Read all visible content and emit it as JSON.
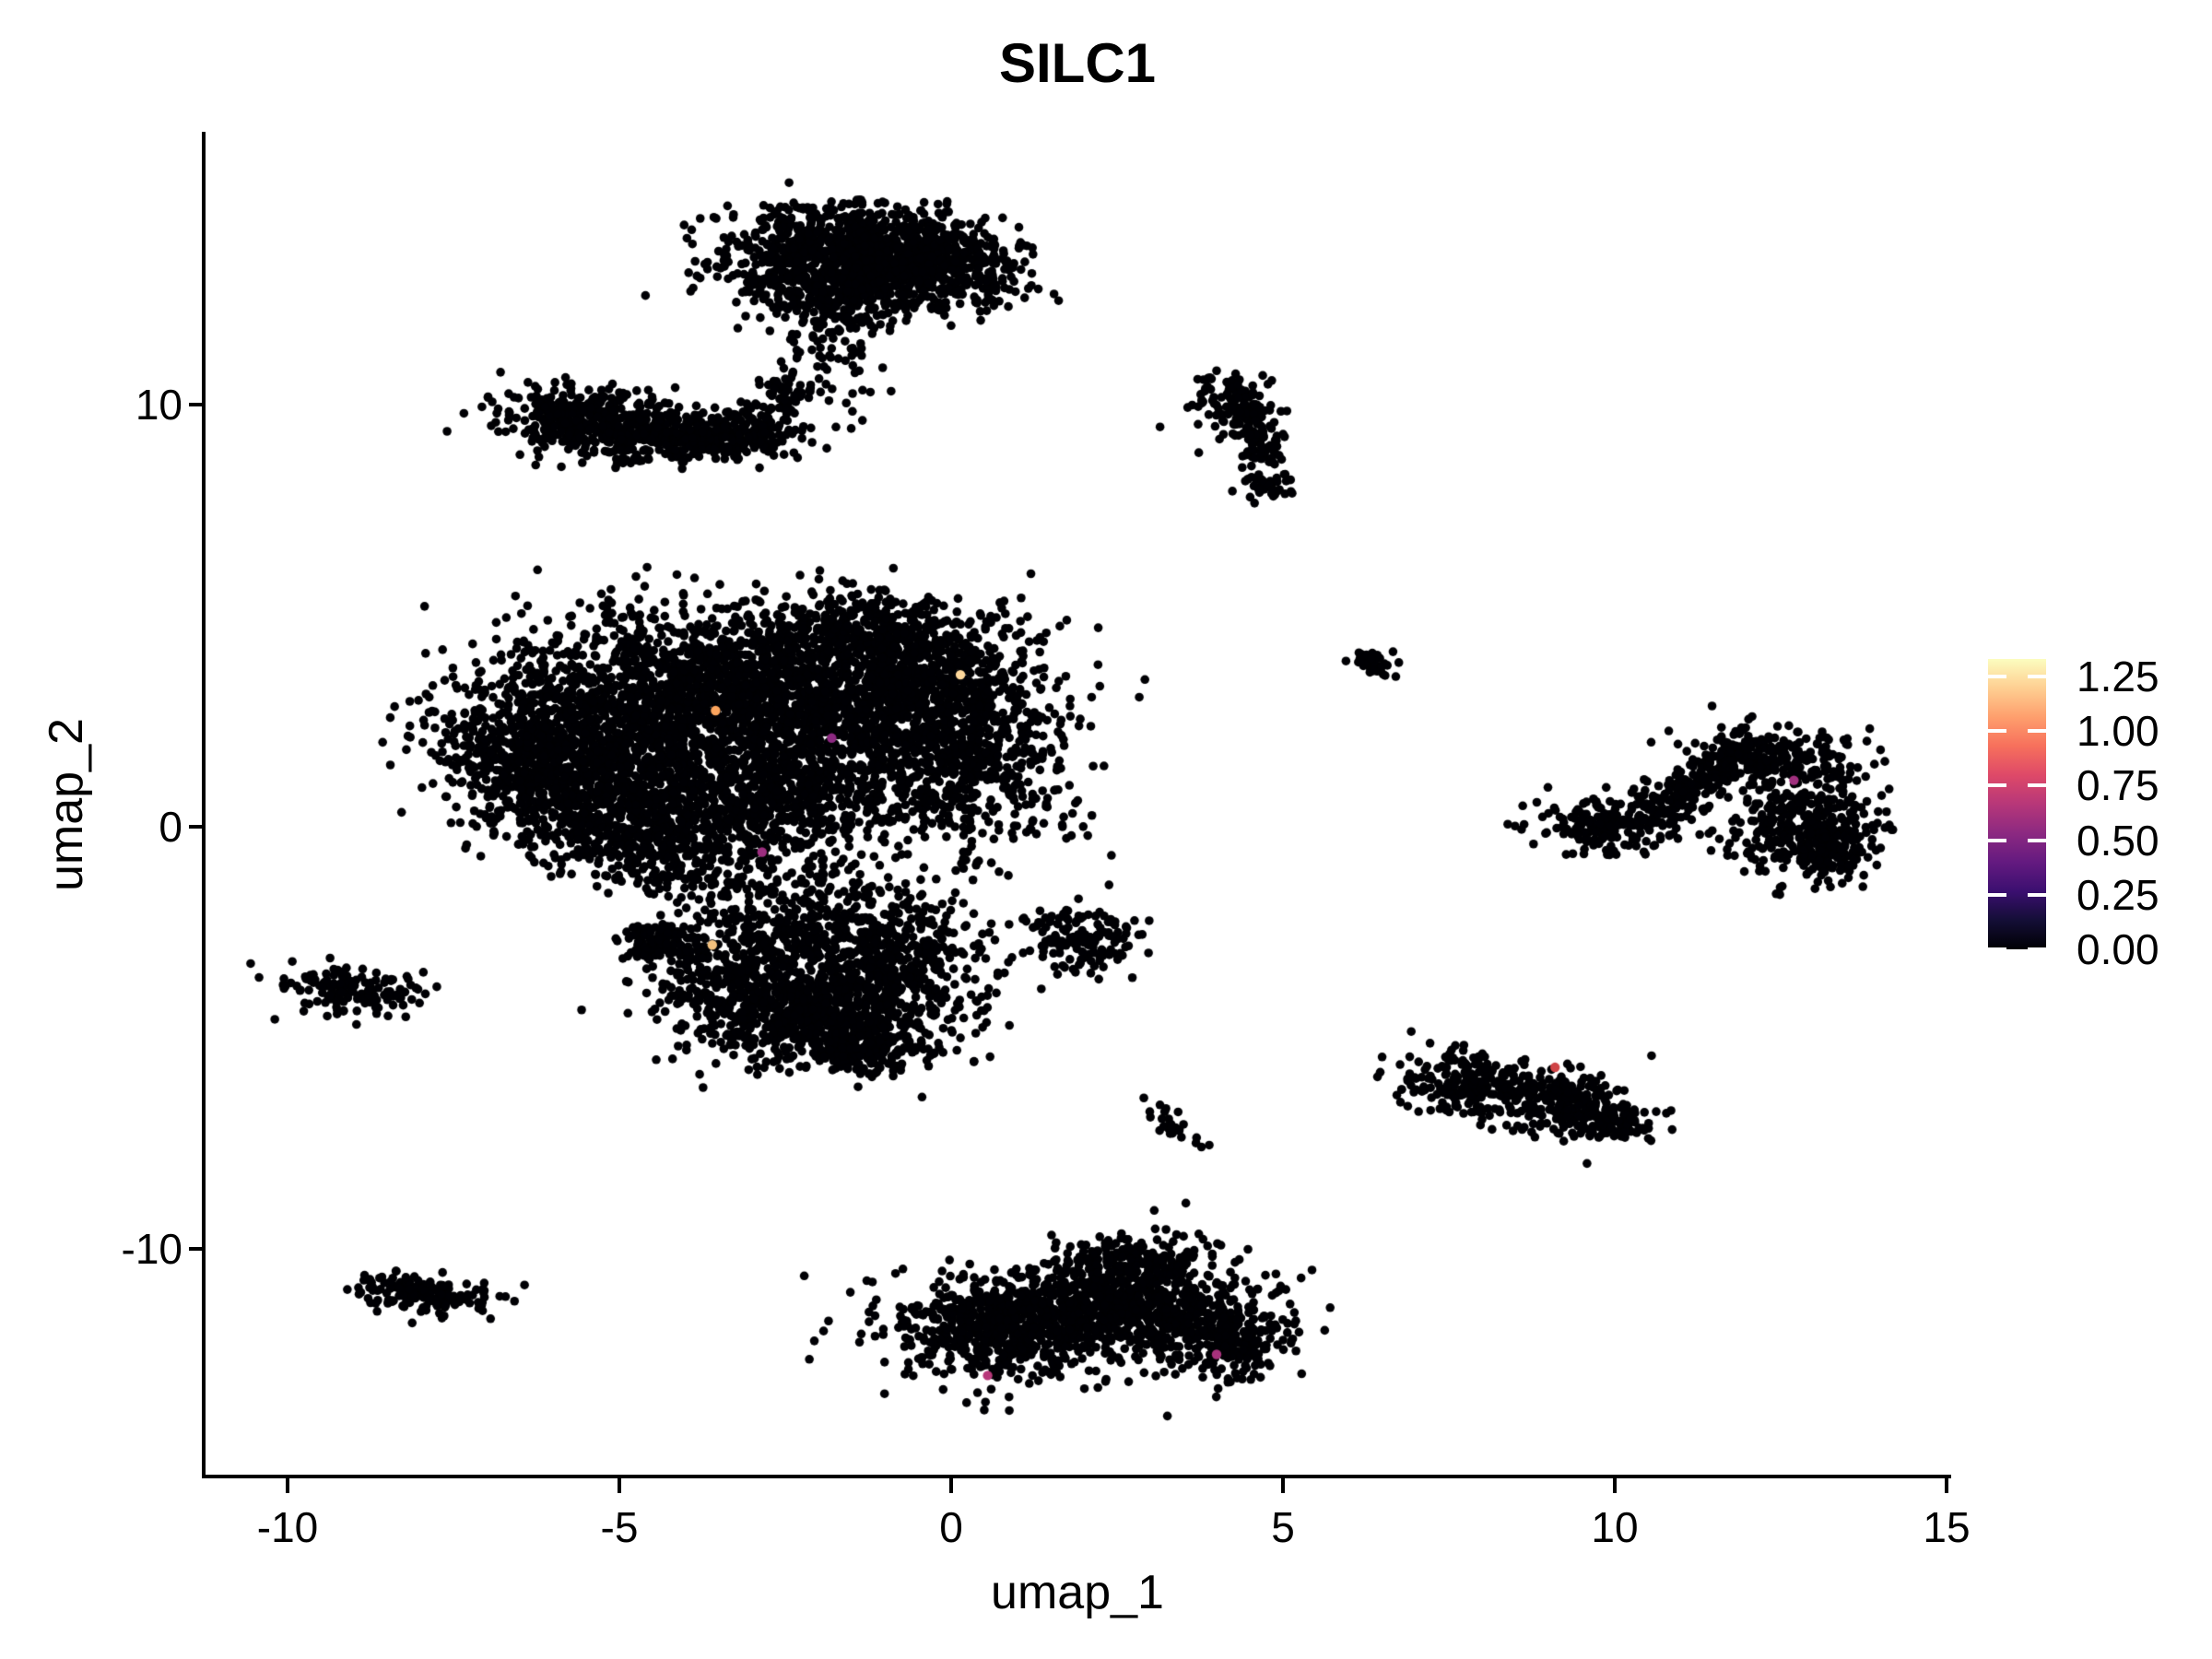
{
  "title": "SILC1",
  "axes": {
    "x": {
      "label": "umap_1",
      "ticks": [
        {
          "label": "-10",
          "value": -10
        },
        {
          "label": "-5",
          "value": -5
        },
        {
          "label": "0",
          "value": 0
        },
        {
          "label": "5",
          "value": 5
        },
        {
          "label": "10",
          "value": 10
        },
        {
          "label": "15",
          "value": 15
        }
      ]
    },
    "y": {
      "label": "umap_2",
      "ticks": [
        {
          "label": "10",
          "value": 10
        },
        {
          "label": "0",
          "value": 0
        },
        {
          "label": "-10",
          "value": -10
        }
      ]
    }
  },
  "legend": {
    "min": 0,
    "max": 1.33,
    "colormap": "magma",
    "ticks": [
      {
        "label": "1.25",
        "value": 1.25
      },
      {
        "label": "1.00",
        "value": 1.0
      },
      {
        "label": "0.75",
        "value": 0.75
      },
      {
        "label": "0.50",
        "value": 0.5
      },
      {
        "label": "0.25",
        "value": 0.25
      },
      {
        "label": "0.00",
        "value": 0.0
      }
    ],
    "stops": [
      {
        "t": 0.0,
        "c": "#000004"
      },
      {
        "t": 0.1,
        "c": "#140e36"
      },
      {
        "t": 0.2,
        "c": "#3b0f70"
      },
      {
        "t": 0.3,
        "c": "#641a80"
      },
      {
        "t": 0.4,
        "c": "#8c2981"
      },
      {
        "t": 0.5,
        "c": "#b73779"
      },
      {
        "t": 0.6,
        "c": "#de4968"
      },
      {
        "t": 0.7,
        "c": "#f7705c"
      },
      {
        "t": 0.8,
        "c": "#fe9f6d"
      },
      {
        "t": 0.9,
        "c": "#fecf92"
      },
      {
        "t": 1.0,
        "c": "#fcfdbf"
      }
    ]
  },
  "chart_data": {
    "type": "scatter",
    "title": "SILC1",
    "xlabel": "umap_1",
    "ylabel": "umap_2",
    "xlim": [
      -11.2,
      15.0
    ],
    "ylim": [
      -15.4,
      16.4
    ],
    "grid": false,
    "legend_position": "right",
    "point_color": "#000004",
    "point_radius_px": 4.8,
    "blob_format": [
      "center_x",
      "center_y",
      "sigma_x",
      "sigma_y",
      "n_points",
      "rotation_deg"
    ],
    "clusters": [
      {
        "name": "top-cluster",
        "blobs": [
          [
            -2.0,
            13.6,
            0.8,
            0.55,
            550,
            0
          ],
          [
            -0.9,
            13.7,
            0.75,
            0.5,
            450,
            0
          ],
          [
            0.1,
            13.15,
            0.55,
            0.45,
            250,
            0
          ],
          [
            -1.6,
            12.6,
            0.7,
            0.4,
            250,
            0
          ],
          [
            -1.9,
            11.3,
            0.35,
            0.8,
            85,
            0
          ]
        ]
      },
      {
        "name": "upper-left-arm",
        "blobs": [
          [
            -5.7,
            9.7,
            0.55,
            0.42,
            280,
            0
          ],
          [
            -4.8,
            9.35,
            0.5,
            0.35,
            220,
            0
          ],
          [
            -3.9,
            9.2,
            0.5,
            0.3,
            180,
            0
          ],
          [
            -3.0,
            9.4,
            0.4,
            0.3,
            120,
            0
          ],
          [
            -2.5,
            10.3,
            0.25,
            0.35,
            50,
            0
          ]
        ]
      },
      {
        "name": "crescent-upper-right",
        "blobs": [
          [
            4.25,
            10.2,
            0.3,
            0.28,
            70,
            0
          ],
          [
            4.55,
            9.6,
            0.18,
            0.3,
            50,
            0
          ],
          [
            4.7,
            8.9,
            0.15,
            0.3,
            45,
            0
          ],
          [
            4.75,
            8.15,
            0.18,
            0.25,
            40,
            0
          ],
          [
            4.0,
            9.4,
            0.25,
            0.4,
            15,
            0
          ]
        ]
      },
      {
        "name": "main-central",
        "blobs": [
          [
            -5.6,
            2.2,
            1.1,
            1.1,
            900,
            0
          ],
          [
            -3.6,
            3.3,
            1.2,
            1.0,
            1000,
            0
          ],
          [
            -1.7,
            2.5,
            1.2,
            1.2,
            1000,
            0
          ],
          [
            -0.3,
            3.2,
            0.9,
            0.9,
            600,
            0
          ],
          [
            -4.8,
            0.6,
            1.0,
            0.8,
            600,
            0
          ],
          [
            -2.7,
            0.6,
            1.0,
            0.8,
            500,
            0
          ],
          [
            0.3,
            1.3,
            0.8,
            1.0,
            450,
            0
          ],
          [
            -6.6,
            1.4,
            0.55,
            0.7,
            250,
            0
          ],
          [
            -1.2,
            4.6,
            0.8,
            0.5,
            300,
            0
          ],
          [
            -4.4,
            -0.6,
            0.8,
            0.5,
            250,
            0
          ]
        ]
      },
      {
        "name": "lower-central",
        "blobs": [
          [
            -2.0,
            -4.5,
            1.0,
            0.6,
            550,
            0
          ],
          [
            -0.9,
            -3.3,
            0.7,
            0.8,
            450,
            0
          ],
          [
            -3.2,
            -3.6,
            0.7,
            0.7,
            350,
            0
          ],
          [
            -2.2,
            -2.6,
            0.8,
            0.6,
            250,
            0
          ],
          [
            -4.4,
            -2.75,
            0.3,
            0.22,
            110,
            0
          ],
          [
            -1.3,
            -5.3,
            0.5,
            0.3,
            150,
            0
          ],
          [
            -2.6,
            -1.5,
            0.8,
            0.35,
            90,
            0
          ]
        ]
      },
      {
        "name": "tiny-mid-right",
        "blobs": [
          [
            6.42,
            3.9,
            0.16,
            0.14,
            40,
            0
          ]
        ]
      },
      {
        "name": "far-left-small",
        "blobs": [
          [
            -9.0,
            -3.85,
            0.5,
            0.26,
            140,
            -8
          ]
        ]
      },
      {
        "name": "small-center-right",
        "blobs": [
          [
            2.1,
            -2.75,
            0.42,
            0.35,
            120,
            0
          ],
          [
            1.6,
            -2.2,
            0.2,
            0.15,
            25,
            0
          ]
        ]
      },
      {
        "name": "right-cluster",
        "blobs": [
          [
            10.0,
            0.05,
            0.55,
            0.35,
            200,
            0
          ],
          [
            11.1,
            0.9,
            0.55,
            0.2,
            180,
            50
          ],
          [
            12.3,
            1.7,
            0.6,
            0.35,
            220,
            0
          ],
          [
            12.9,
            0.2,
            0.55,
            0.7,
            330,
            0
          ],
          [
            13.3,
            -0.55,
            0.3,
            0.35,
            120,
            0
          ]
        ]
      },
      {
        "name": "right-lower-cluster",
        "blobs": [
          [
            7.9,
            -6.1,
            0.6,
            0.38,
            230,
            -15
          ],
          [
            9.3,
            -6.6,
            0.55,
            0.4,
            220,
            -20
          ],
          [
            10.05,
            -7.0,
            0.22,
            0.22,
            60,
            0
          ]
        ]
      },
      {
        "name": "tiny-bottom-mid",
        "blobs": [
          [
            3.4,
            -7.05,
            0.35,
            0.12,
            26,
            -55
          ]
        ]
      },
      {
        "name": "bottom-left-small",
        "blobs": [
          [
            -8.0,
            -11.05,
            0.55,
            0.22,
            160,
            -10
          ]
        ]
      },
      {
        "name": "bottom-dumbbell",
        "blobs": [
          [
            0.6,
            -11.9,
            0.85,
            0.6,
            600,
            0
          ],
          [
            3.0,
            -11.4,
            0.9,
            0.65,
            700,
            0
          ],
          [
            1.8,
            -11.3,
            0.5,
            0.4,
            200,
            0
          ],
          [
            2.6,
            -10.3,
            0.5,
            0.3,
            150,
            0
          ],
          [
            4.3,
            -12.2,
            0.4,
            0.4,
            150,
            0
          ]
        ]
      }
    ],
    "highlight_point_format": [
      "x",
      "y",
      "value",
      "color"
    ],
    "highlight_points": [
      [
        0.14,
        3.6,
        1.25,
        "#fdd79b"
      ],
      [
        -3.55,
        2.75,
        1.0,
        "#fca55e"
      ],
      [
        -1.8,
        2.1,
        0.55,
        "#8c2981"
      ],
      [
        -2.85,
        -0.6,
        0.6,
        "#9c2e7f"
      ],
      [
        -3.6,
        -2.8,
        1.1,
        "#f3c17e"
      ],
      [
        0.55,
        -13.0,
        0.7,
        "#b73779"
      ],
      [
        4.0,
        -12.5,
        0.62,
        "#a8327d"
      ],
      [
        9.1,
        -5.7,
        0.8,
        "#cf4446"
      ],
      [
        12.7,
        1.1,
        0.6,
        "#a0307e"
      ]
    ]
  }
}
